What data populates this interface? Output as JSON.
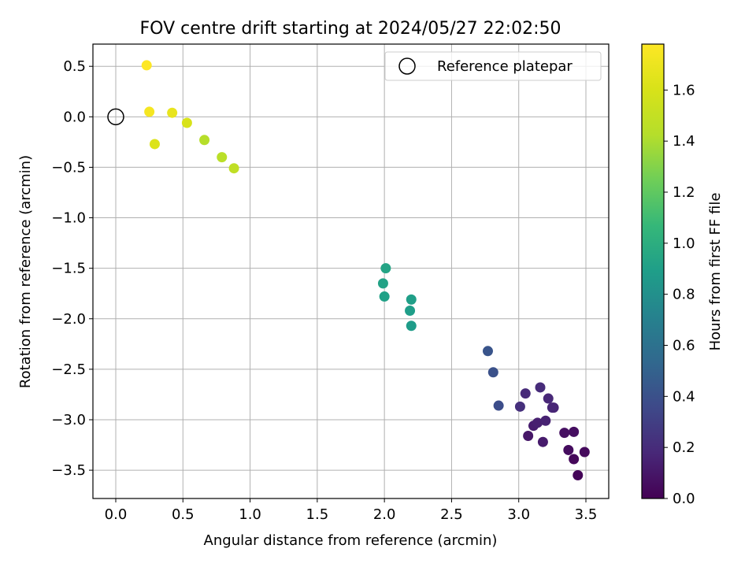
{
  "chart_data": {
    "type": "scatter",
    "title": "FOV centre drift starting at 2024/05/27 22:02:50",
    "xlabel": "Angular distance from reference (arcmin)",
    "ylabel": "Rotation from reference (arcmin)",
    "xlim": [
      -0.17,
      3.67
    ],
    "ylim": [
      -3.78,
      0.72
    ],
    "xticks": [
      "0.0",
      "0.5",
      "1.0",
      "1.5",
      "2.0",
      "2.5",
      "3.0",
      "3.5"
    ],
    "yticks": [
      "0.5",
      "0.0",
      "−0.5",
      "−1.0",
      "−1.5",
      "−2.0",
      "−2.5",
      "−3.0",
      "−3.5"
    ],
    "grid": true,
    "legend": {
      "location": "top-right",
      "entries": [
        "Reference platepar"
      ]
    },
    "reference_point": {
      "x": 0.0,
      "y": 0.0
    },
    "colorbar": {
      "label": "Hours from first FF file",
      "colormap": "viridis",
      "range": [
        0.0,
        1.78
      ],
      "ticks": [
        "0.0",
        "0.2",
        "0.4",
        "0.6",
        "0.8",
        "1.0",
        "1.2",
        "1.4",
        "1.6"
      ]
    },
    "points": [
      {
        "x": 3.44,
        "y": -3.55,
        "c": 0.02
      },
      {
        "x": 3.41,
        "y": -3.39,
        "c": 0.03
      },
      {
        "x": 3.49,
        "y": -3.32,
        "c": 0.04
      },
      {
        "x": 3.37,
        "y": -3.3,
        "c": 0.05
      },
      {
        "x": 3.41,
        "y": -3.12,
        "c": 0.06
      },
      {
        "x": 3.34,
        "y": -3.13,
        "c": 0.07
      },
      {
        "x": 3.07,
        "y": -3.16,
        "c": 0.1
      },
      {
        "x": 3.18,
        "y": -3.22,
        "c": 0.12
      },
      {
        "x": 3.11,
        "y": -3.06,
        "c": 0.13
      },
      {
        "x": 3.14,
        "y": -3.03,
        "c": 0.14
      },
      {
        "x": 3.2,
        "y": -3.01,
        "c": 0.15
      },
      {
        "x": 3.26,
        "y": -2.88,
        "c": 0.16
      },
      {
        "x": 3.25,
        "y": -2.88,
        "c": 0.17
      },
      {
        "x": 3.22,
        "y": -2.79,
        "c": 0.18
      },
      {
        "x": 3.05,
        "y": -2.74,
        "c": 0.19
      },
      {
        "x": 3.16,
        "y": -2.68,
        "c": 0.2
      },
      {
        "x": 3.01,
        "y": -2.87,
        "c": 0.22
      },
      {
        "x": 2.85,
        "y": -2.86,
        "c": 0.38
      },
      {
        "x": 2.81,
        "y": -2.53,
        "c": 0.4
      },
      {
        "x": 2.77,
        "y": -2.32,
        "c": 0.42
      },
      {
        "x": 2.2,
        "y": -2.07,
        "c": 0.88
      },
      {
        "x": 2.19,
        "y": -1.92,
        "c": 0.89
      },
      {
        "x": 2.2,
        "y": -1.81,
        "c": 0.9
      },
      {
        "x": 2.0,
        "y": -1.78,
        "c": 0.91
      },
      {
        "x": 1.99,
        "y": -1.65,
        "c": 0.92
      },
      {
        "x": 2.01,
        "y": -1.5,
        "c": 0.93
      },
      {
        "x": 0.88,
        "y": -0.51,
        "c": 1.48
      },
      {
        "x": 0.79,
        "y": -0.4,
        "c": 1.45
      },
      {
        "x": 0.66,
        "y": -0.23,
        "c": 1.43
      },
      {
        "x": 0.53,
        "y": -0.06,
        "c": 1.6
      },
      {
        "x": 0.29,
        "y": -0.27,
        "c": 1.62
      },
      {
        "x": 0.42,
        "y": 0.04,
        "c": 1.68
      },
      {
        "x": 0.25,
        "y": 0.05,
        "c": 1.74
      },
      {
        "x": 0.23,
        "y": 0.51,
        "c": 1.78
      }
    ]
  }
}
